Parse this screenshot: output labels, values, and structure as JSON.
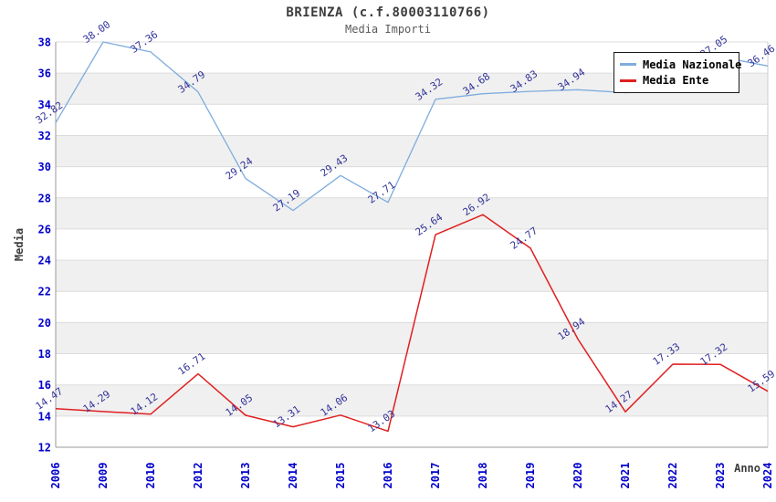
{
  "chart_data": {
    "type": "line",
    "title": "BRIENZA (c.f.80003110766)",
    "subtitle": "Media Importi",
    "xlabel": "Anno",
    "ylabel": "Media",
    "categories": [
      "2006",
      "2009",
      "2010",
      "2012",
      "2013",
      "2014",
      "2015",
      "2016",
      "2017",
      "2018",
      "2019",
      "2020",
      "2021",
      "2022",
      "2023",
      "2024"
    ],
    "ylim": [
      12,
      38
    ],
    "yticks": [
      "12",
      "14",
      "16",
      "18",
      "20",
      "22",
      "24",
      "26",
      "28",
      "30",
      "32",
      "34",
      "36",
      "38"
    ],
    "grid": "horizontal-bands",
    "legend_position": "top-right",
    "series": [
      {
        "name": "Media Nazionale",
        "color": "#7FACDE",
        "values": [
          32.82,
          38.0,
          37.36,
          34.79,
          29.24,
          27.19,
          29.43,
          27.71,
          34.32,
          34.68,
          34.83,
          34.94,
          34.75,
          34.85,
          37.05,
          36.46
        ],
        "labels": [
          "32.82",
          "38.00",
          "37.36",
          "34.79",
          "29.24",
          "27.19",
          "29.43",
          "27.71",
          "34.32",
          "34.68",
          "34.83",
          "34.94",
          null,
          null,
          "37.05",
          "36.46"
        ]
      },
      {
        "name": "Media Ente",
        "color": "#E02020",
        "values": [
          14.47,
          14.29,
          14.12,
          16.71,
          14.05,
          13.31,
          14.06,
          13.03,
          25.64,
          26.92,
          24.77,
          18.94,
          14.27,
          17.33,
          17.32,
          15.59
        ],
        "labels": [
          "14.47",
          "14.29",
          "14.12",
          "16.71",
          "14.05",
          "13.31",
          "14.06",
          "13.03",
          "25.64",
          "26.92",
          "24.77",
          "18.94",
          "14.27",
          "17.33",
          "17.32",
          "15.59"
        ]
      }
    ],
    "colors": {
      "tick_label": "#0000CC",
      "data_label": "#333399",
      "band_fill": "#F0F0F0",
      "gridline": "#DCDCDC",
      "axis_line": "#999999",
      "plot_right_border": "#CCCCCC",
      "title_text": "#3C3C3C"
    }
  }
}
